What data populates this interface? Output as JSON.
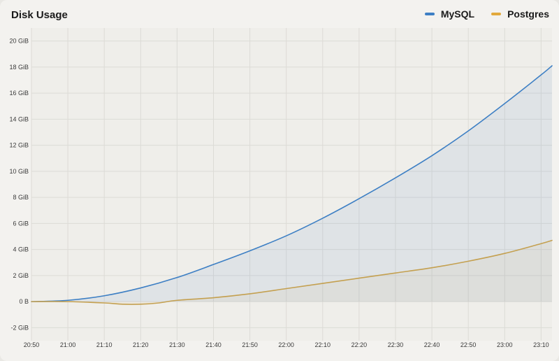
{
  "chart_data": {
    "type": "line",
    "title": "Disk Usage",
    "xlabel": "",
    "ylabel": "",
    "unit": "GiB",
    "legend_position": "top-right",
    "grid": true,
    "y_ticks": [
      "-2 GiB",
      "0 B",
      "2 GiB",
      "4 GiB",
      "6 GiB",
      "8 GiB",
      "10 GiB",
      "12 GiB",
      "14 GiB",
      "16 GiB",
      "18 GiB",
      "20 GiB"
    ],
    "y_tick_values": [
      -2,
      0,
      2,
      4,
      6,
      8,
      10,
      12,
      14,
      16,
      18,
      20
    ],
    "ylim": [
      -3,
      21
    ],
    "x_ticks": [
      "20:50",
      "21:00",
      "21:10",
      "21:20",
      "21:30",
      "21:40",
      "21:50",
      "22:00",
      "22:10",
      "22:20",
      "22:30",
      "22:40",
      "22:50",
      "23:00",
      "23:10"
    ],
    "x_tick_minutes": [
      0,
      10,
      20,
      30,
      40,
      50,
      60,
      70,
      80,
      90,
      100,
      110,
      120,
      130,
      140
    ],
    "xlim_minutes": [
      0,
      143
    ],
    "series": [
      {
        "name": "MySQL",
        "color": "#3d7fc4",
        "fill": true,
        "x_minutes": [
          0,
          10,
          20,
          30,
          40,
          50,
          60,
          70,
          80,
          90,
          100,
          110,
          120,
          130,
          140,
          143
        ],
        "values": [
          0,
          0.1,
          0.45,
          1.05,
          1.85,
          2.85,
          3.9,
          5.05,
          6.4,
          7.9,
          9.5,
          11.2,
          13.1,
          15.2,
          17.4,
          18.1
        ]
      },
      {
        "name": "Postgres",
        "color": "#c4a050",
        "fill": true,
        "x_minutes": [
          0,
          10,
          20,
          25,
          30,
          35,
          40,
          50,
          60,
          70,
          80,
          90,
          100,
          110,
          120,
          130,
          140,
          143
        ],
        "values": [
          0,
          0,
          -0.1,
          -0.2,
          -0.2,
          -0.1,
          0.1,
          0.3,
          0.6,
          1.0,
          1.4,
          1.8,
          2.2,
          2.6,
          3.1,
          3.7,
          4.45,
          4.7
        ]
      }
    ]
  }
}
